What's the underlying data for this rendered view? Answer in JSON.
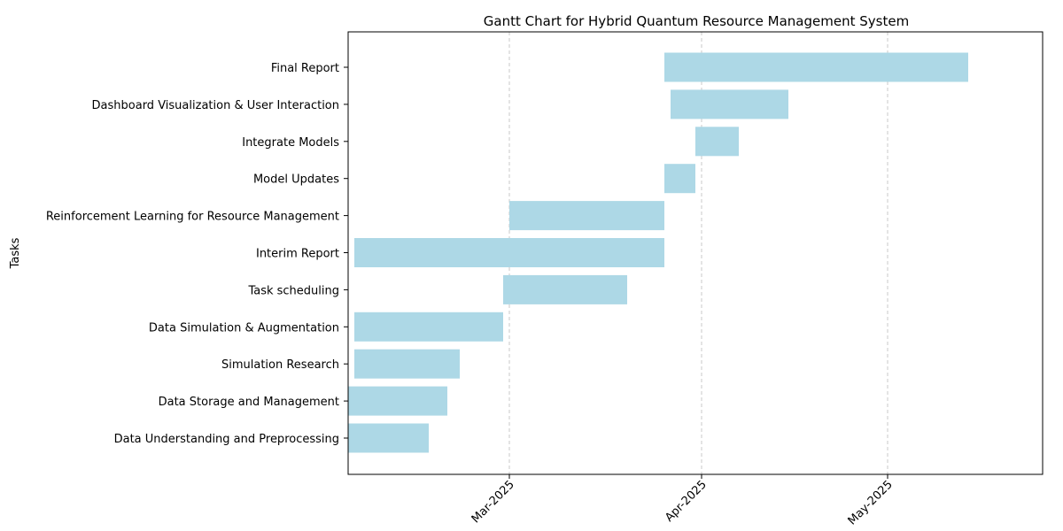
{
  "chart_data": {
    "type": "gantt",
    "title": "Gantt Chart for Hybrid Quantum Resource Management System",
    "ylabel": "Tasks",
    "xlabel": "",
    "x_axis_type": "date",
    "x_ticks": [
      "2025-03-01",
      "2025-04-01",
      "2025-05-01"
    ],
    "x_tick_labels": [
      "Mar-2025",
      "Apr-2025",
      "May-2025"
    ],
    "xlim": [
      "2025-02-03",
      "2025-05-26"
    ],
    "grid": "x-dashed",
    "bar_color": "#add8e6",
    "tasks": [
      {
        "name": "Data Understanding and Preprocessing",
        "start": "2025-02-03",
        "end": "2025-02-16"
      },
      {
        "name": "Data Storage and Management",
        "start": "2025-02-03",
        "end": "2025-02-19"
      },
      {
        "name": "Simulation Research",
        "start": "2025-02-04",
        "end": "2025-02-21"
      },
      {
        "name": "Data Simulation & Augmentation",
        "start": "2025-02-04",
        "end": "2025-02-28"
      },
      {
        "name": "Task scheduling",
        "start": "2025-02-28",
        "end": "2025-03-20"
      },
      {
        "name": "Interim Report",
        "start": "2025-02-04",
        "end": "2025-03-26"
      },
      {
        "name": "Reinforcement Learning for Resource Management",
        "start": "2025-03-01",
        "end": "2025-03-26"
      },
      {
        "name": "Model Updates",
        "start": "2025-03-26",
        "end": "2025-03-31"
      },
      {
        "name": "Integrate Models",
        "start": "2025-03-31",
        "end": "2025-04-07"
      },
      {
        "name": "Dashboard Visualization & User Interaction",
        "start": "2025-03-27",
        "end": "2025-04-15"
      },
      {
        "name": "Final Report",
        "start": "2025-03-26",
        "end": "2025-05-14"
      }
    ]
  }
}
